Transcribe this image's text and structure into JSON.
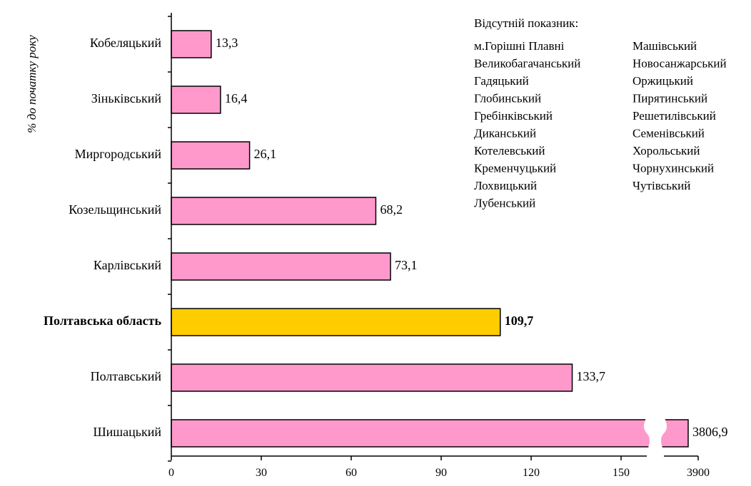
{
  "chart_data": {
    "type": "bar",
    "orientation": "horizontal",
    "ylabel": "% до початку року",
    "categories": [
      "Кобеляцький",
      "Зіньківський",
      "Миргородський",
      "Козельщинський",
      "Карлівський",
      "Полтавська область",
      "Полтавський",
      "Шишацький"
    ],
    "values": [
      13.3,
      16.4,
      26.1,
      68.2,
      73.1,
      109.7,
      133.7,
      3806.9
    ],
    "value_labels": [
      "13,3",
      "16,4",
      "26,1",
      "68,2",
      "73,1",
      "109,7",
      "133,7",
      "3806,9"
    ],
    "highlight_index": 5,
    "xticks": [
      {
        "label": "0",
        "value": 0
      },
      {
        "label": "30",
        "value": 30
      },
      {
        "label": "60",
        "value": 60
      },
      {
        "label": "90",
        "value": 90
      },
      {
        "label": "120",
        "value": 120
      },
      {
        "label": "150",
        "value": 150
      },
      {
        "label": "3900",
        "value": 3900
      }
    ],
    "axis_break": true,
    "colors": {
      "bar": "#ff99cc",
      "highlight": "#ffcc00",
      "outline": "#000000"
    },
    "grid": false,
    "legend": {
      "title": "Відсутній показник:",
      "column1": [
        "м.Горішні Плавні",
        "Великобагачанський",
        "Гадяцький",
        "Глобинський",
        "Гребінківський",
        "Диканський",
        "Котелевський",
        "Кременчуцький",
        "Лохвицький",
        "Лубенський"
      ],
      "column2": [
        "Машівський",
        "Новосанжарський",
        "Оржицький",
        "Пирятинський",
        "Решетилівський",
        "Семенівський",
        "Хорольський",
        "Чорнухинський",
        "Чутівський"
      ]
    }
  }
}
